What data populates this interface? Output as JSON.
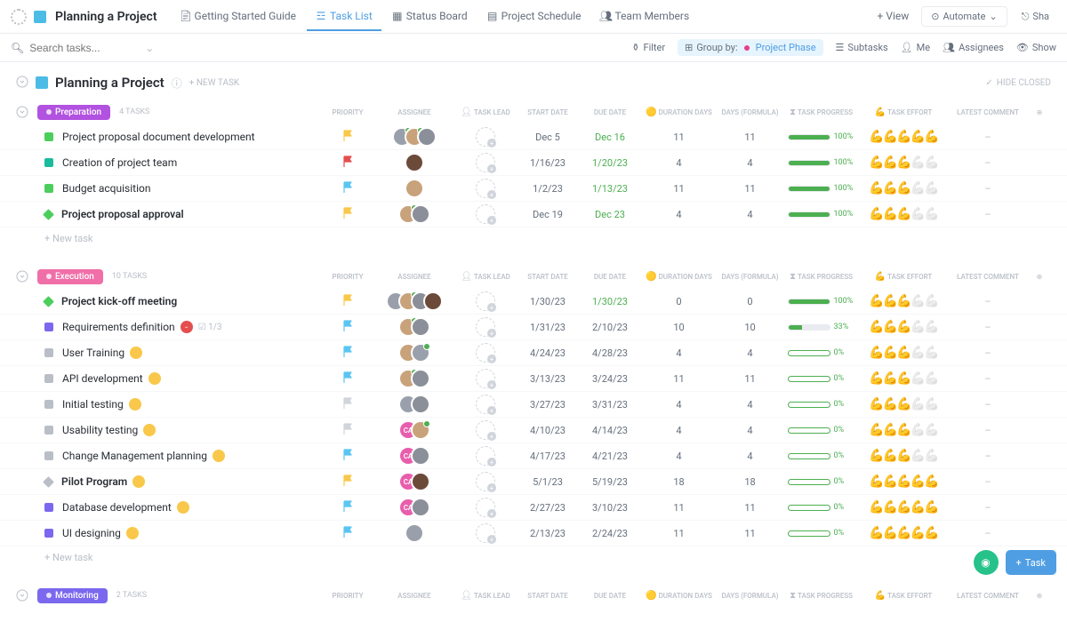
{
  "header": {
    "project_title": "Planning a Project",
    "tabs": [
      {
        "label": "Getting Started Guide",
        "active": false,
        "icon": "doc"
      },
      {
        "label": "Task List",
        "active": true,
        "icon": "list"
      },
      {
        "label": "Status Board",
        "active": false,
        "icon": "board"
      },
      {
        "label": "Project Schedule",
        "active": false,
        "icon": "gantt"
      },
      {
        "label": "Team Members",
        "active": false,
        "icon": "team"
      }
    ],
    "add_view": "+ View",
    "automate": "Automate",
    "share": "Sha"
  },
  "filter_bar": {
    "search_placeholder": "Search tasks...",
    "filter": "Filter",
    "group_by_label": "Group by:",
    "group_by_value": "Project Phase",
    "subtasks": "Subtasks",
    "me": "Me",
    "assignees": "Assignees",
    "show": "Show"
  },
  "section": {
    "title": "Planning a Project",
    "new_task": "+ NEW TASK",
    "hide_closed": "HIDE CLOSED"
  },
  "columns": {
    "priority": "PRIORITY",
    "assignee": "ASSIGNEE",
    "task_lead": "TASK LEAD",
    "start_date": "START DATE",
    "due_date": "DUE DATE",
    "duration": "DURATION DAYS",
    "days_formula": "DAYS (FORMULA)",
    "progress": "TASK PROGRESS",
    "effort": "TASK EFFORT",
    "comment": "LATEST COMMENT"
  },
  "new_task_label": "+ New task",
  "colors": {
    "flag_yellow": "#f9c84a",
    "flag_red": "#e54e4e",
    "flag_blue": "#5bc5f2",
    "flag_gray": "#d0d4db",
    "status_green": "#4cce5d",
    "status_teal": "#1abc9c",
    "status_purple": "#7b68ee",
    "status_gray": "#b9bec7",
    "avatar_pink": "#e85eac",
    "avatar_gray": "#9aa0ab",
    "avatar_tan": "#c8a27a",
    "badge_yellow": "#f9c84a",
    "badge_red": "#e54e4e",
    "progress_green": "#4caf50"
  },
  "groups": [
    {
      "name": "Preparation",
      "pill_color": "#b252e0",
      "task_count": "4 TASKS",
      "tasks": [
        {
          "name": "Project proposal document development",
          "bold": false,
          "status_shape": "square",
          "status_color": "#4cce5d",
          "flag": "#f9c84a",
          "assignees": [
            {
              "bg": "#9aa0ab",
              "dot": true
            },
            {
              "bg": "#c8a27a",
              "dot": true
            },
            {
              "bg": "#8a8f99"
            }
          ],
          "start": "Dec 5",
          "due": "Dec 16",
          "due_green": true,
          "duration": "11",
          "daysf": "11",
          "progress": 100,
          "effort": 5,
          "comment": "–"
        },
        {
          "name": "Creation of project team",
          "bold": false,
          "status_shape": "square",
          "status_color": "#1abc9c",
          "flag": "#e54e4e",
          "assignees": [
            {
              "bg": "#6b4a3a"
            }
          ],
          "start": "1/16/23",
          "due": "1/20/23",
          "due_green": true,
          "duration": "4",
          "daysf": "4",
          "progress": 100,
          "effort": 3,
          "comment": "–"
        },
        {
          "name": "Budget acquisition",
          "bold": false,
          "status_shape": "square",
          "status_color": "#4cce5d",
          "flag": "#5bc5f2",
          "assignees": [
            {
              "bg": "#c8a27a"
            }
          ],
          "start": "1/2/23",
          "due": "1/13/23",
          "due_green": true,
          "duration": "11",
          "daysf": "11",
          "progress": 100,
          "effort": 3,
          "comment": "–"
        },
        {
          "name": "Project proposal approval",
          "bold": true,
          "status_shape": "diamond",
          "status_color": "#4cce5d",
          "flag": "#f9c84a",
          "assignees": [
            {
              "bg": "#c8a27a",
              "dot": true
            },
            {
              "bg": "#8a8f99"
            }
          ],
          "start": "Dec 19",
          "due": "Dec 23",
          "due_green": true,
          "duration": "4",
          "daysf": "4",
          "progress": 100,
          "effort": 3,
          "comment": "–"
        }
      ]
    },
    {
      "name": "Execution",
      "pill_color": "#f06fa8",
      "task_count": "10 TASKS",
      "tasks": [
        {
          "name": "Project kick-off meeting",
          "bold": true,
          "status_shape": "diamond",
          "status_color": "#4cce5d",
          "flag": "#f9c84a",
          "assignees": [
            {
              "bg": "#9aa0ab"
            },
            {
              "bg": "#c8a27a",
              "dot": true
            },
            {
              "bg": "#8a8f99"
            },
            {
              "bg": "#6b4a3a"
            }
          ],
          "start": "1/30/23",
          "due": "1/30/23",
          "due_green": true,
          "duration": "0",
          "daysf": "0",
          "progress": 100,
          "effort": 3,
          "comment": "–"
        },
        {
          "name": "Requirements definition",
          "bold": false,
          "status_shape": "square",
          "status_color": "#7b68ee",
          "flag": "#5bc5f2",
          "badge": "#e54e4e",
          "sub": "1/3",
          "assignees": [
            {
              "bg": "#c8a27a",
              "dot": true
            },
            {
              "bg": "#8a8f99"
            }
          ],
          "start": "1/31/23",
          "due": "2/10/23",
          "due_green": false,
          "duration": "10",
          "daysf": "10",
          "progress": 33,
          "effort": 3,
          "comment": "–"
        },
        {
          "name": "User Training",
          "bold": false,
          "status_shape": "square",
          "status_color": "#b9bec7",
          "flag": "#5bc5f2",
          "badge": "#f9c84a",
          "assignees": [
            {
              "bg": "#c8a27a"
            },
            {
              "bg": "#9aa0ab",
              "dot": true
            }
          ],
          "start": "4/24/23",
          "due": "4/28/23",
          "due_green": false,
          "duration": "4",
          "daysf": "4",
          "progress": 0,
          "effort": 3,
          "comment": "–"
        },
        {
          "name": "API development",
          "bold": false,
          "status_shape": "square",
          "status_color": "#b9bec7",
          "flag": "#5bc5f2",
          "badge": "#f9c84a",
          "assignees": [
            {
              "bg": "#c8a27a",
              "dot": true
            },
            {
              "bg": "#8a8f99"
            }
          ],
          "start": "3/13/23",
          "due": "3/24/23",
          "due_green": false,
          "duration": "11",
          "daysf": "11",
          "progress": 0,
          "effort": 3,
          "comment": "–"
        },
        {
          "name": "Initial testing",
          "bold": false,
          "status_shape": "square",
          "status_color": "#b9bec7",
          "flag": "#d0d4db",
          "badge": "#f9c84a",
          "assignees": [
            {
              "bg": "#9aa0ab"
            },
            {
              "bg": "#8a8f99"
            }
          ],
          "start": "3/27/23",
          "due": "3/31/23",
          "due_green": false,
          "duration": "4",
          "daysf": "4",
          "progress": 0,
          "effort": 3,
          "comment": "–"
        },
        {
          "name": "Usability testing",
          "bold": false,
          "status_shape": "square",
          "status_color": "#b9bec7",
          "flag": "#d0d4db",
          "badge": "#f9c84a",
          "assignees": [
            {
              "bg": "#e85eac",
              "txt": "CA"
            },
            {
              "bg": "#c8a27a",
              "dot": true
            }
          ],
          "start": "4/10/23",
          "due": "4/14/23",
          "due_green": false,
          "duration": "4",
          "daysf": "4",
          "progress": 0,
          "effort": 3,
          "comment": "–"
        },
        {
          "name": "Change Management planning",
          "bold": false,
          "status_shape": "square",
          "status_color": "#b9bec7",
          "flag": "#5bc5f2",
          "badge": "#f9c84a",
          "assignees": [
            {
              "bg": "#e85eac",
              "txt": "CA"
            },
            {
              "bg": "#8a8f99"
            }
          ],
          "start": "4/17/23",
          "due": "4/21/23",
          "due_green": false,
          "duration": "4",
          "daysf": "4",
          "progress": 0,
          "effort": 3,
          "comment": "–"
        },
        {
          "name": "Pilot Program",
          "bold": true,
          "status_shape": "diamond",
          "status_color": "#b9bec7",
          "flag": "#f9c84a",
          "badge": "#f9c84a",
          "assignees": [
            {
              "bg": "#e85eac",
              "txt": "CA"
            },
            {
              "bg": "#6b4a3a"
            }
          ],
          "start": "5/1/23",
          "due": "5/19/23",
          "due_green": false,
          "duration": "18",
          "daysf": "18",
          "progress": 0,
          "effort": 5,
          "comment": "–"
        },
        {
          "name": "Database development",
          "bold": false,
          "status_shape": "square",
          "status_color": "#7b68ee",
          "flag": "#5bc5f2",
          "badge": "#f9c84a",
          "assignees": [
            {
              "bg": "#e85eac",
              "txt": "CA"
            },
            {
              "bg": "#8a8f99"
            }
          ],
          "start": "2/27/23",
          "due": "3/10/23",
          "due_green": false,
          "duration": "11",
          "daysf": "11",
          "progress": 0,
          "effort": 5,
          "comment": "–"
        },
        {
          "name": "UI designing",
          "bold": false,
          "status_shape": "square",
          "status_color": "#7b68ee",
          "flag": "#5bc5f2",
          "badge": "#f9c84a",
          "assignees": [
            {
              "bg": "#9aa0ab"
            }
          ],
          "start": "2/13/23",
          "due": "2/24/23",
          "due_green": false,
          "duration": "11",
          "daysf": "11",
          "progress": 0,
          "effort": 5,
          "comment": "–"
        }
      ]
    },
    {
      "name": "Monitoring",
      "pill_color": "#7b68ee",
      "task_count": "2 TASKS",
      "tasks": []
    }
  ],
  "fab": {
    "task_label": "Task"
  }
}
